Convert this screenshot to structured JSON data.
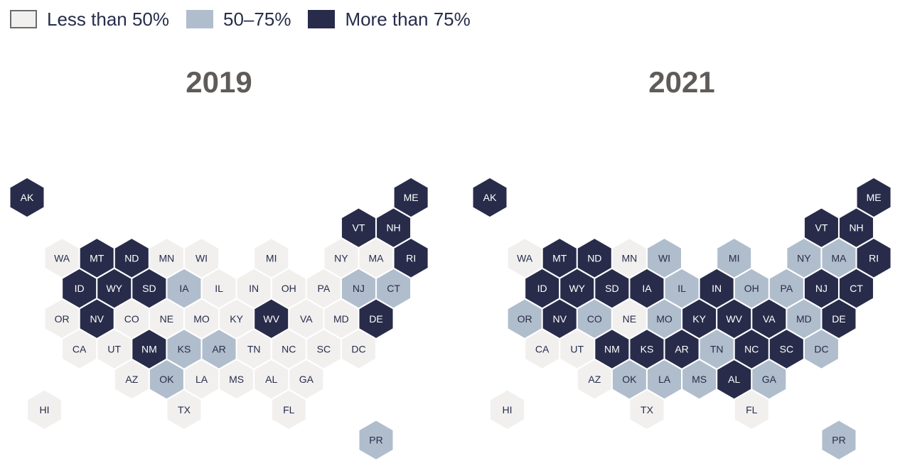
{
  "legend": [
    {
      "label": "Less than 50%",
      "color": "#f1f0ef",
      "border": "#6b6b6b"
    },
    {
      "label": "50–75%",
      "color": "#b0bdcc",
      "border": "#b0bdcc"
    },
    {
      "label": "More than 75%",
      "color": "#282c4a",
      "border": "#282c4a"
    }
  ],
  "colors": {
    "low": "#f1f0ef",
    "mid": "#b0bdcc",
    "high": "#282c4a",
    "text_on_light": "#272d4a",
    "text_on_dark": "#ffffff",
    "title": "#5f5b58"
  },
  "maps": [
    {
      "title": "2019",
      "states": [
        {
          "code": "AK",
          "row": 0,
          "col": 0,
          "cat": "high"
        },
        {
          "code": "ME",
          "row": 0,
          "col": 11,
          "cat": "high"
        },
        {
          "code": "VT",
          "row": 1,
          "col": 9.5,
          "cat": "high"
        },
        {
          "code": "NH",
          "row": 1,
          "col": 10.5,
          "cat": "high"
        },
        {
          "code": "WA",
          "row": 2,
          "col": 1,
          "cat": "low"
        },
        {
          "code": "MT",
          "row": 2,
          "col": 2,
          "cat": "high"
        },
        {
          "code": "ND",
          "row": 2,
          "col": 3,
          "cat": "high"
        },
        {
          "code": "MN",
          "row": 2,
          "col": 4,
          "cat": "low"
        },
        {
          "code": "WI",
          "row": 2,
          "col": 5,
          "cat": "low"
        },
        {
          "code": "MI",
          "row": 2,
          "col": 7,
          "cat": "low"
        },
        {
          "code": "NY",
          "row": 2,
          "col": 9,
          "cat": "low"
        },
        {
          "code": "MA",
          "row": 2,
          "col": 10,
          "cat": "low"
        },
        {
          "code": "RI",
          "row": 2,
          "col": 11,
          "cat": "high"
        },
        {
          "code": "ID",
          "row": 3,
          "col": 1.5,
          "cat": "high"
        },
        {
          "code": "WY",
          "row": 3,
          "col": 2.5,
          "cat": "high"
        },
        {
          "code": "SD",
          "row": 3,
          "col": 3.5,
          "cat": "high"
        },
        {
          "code": "IA",
          "row": 3,
          "col": 4.5,
          "cat": "mid"
        },
        {
          "code": "IL",
          "row": 3,
          "col": 5.5,
          "cat": "low"
        },
        {
          "code": "IN",
          "row": 3,
          "col": 6.5,
          "cat": "low"
        },
        {
          "code": "OH",
          "row": 3,
          "col": 7.5,
          "cat": "low"
        },
        {
          "code": "PA",
          "row": 3,
          "col": 8.5,
          "cat": "low"
        },
        {
          "code": "NJ",
          "row": 3,
          "col": 9.5,
          "cat": "mid"
        },
        {
          "code": "CT",
          "row": 3,
          "col": 10.5,
          "cat": "mid"
        },
        {
          "code": "OR",
          "row": 4,
          "col": 1,
          "cat": "low"
        },
        {
          "code": "NV",
          "row": 4,
          "col": 2,
          "cat": "high"
        },
        {
          "code": "CO",
          "row": 4,
          "col": 3,
          "cat": "low"
        },
        {
          "code": "NE",
          "row": 4,
          "col": 4,
          "cat": "low"
        },
        {
          "code": "MO",
          "row": 4,
          "col": 5,
          "cat": "low"
        },
        {
          "code": "KY",
          "row": 4,
          "col": 6,
          "cat": "low"
        },
        {
          "code": "WV",
          "row": 4,
          "col": 7,
          "cat": "high"
        },
        {
          "code": "VA",
          "row": 4,
          "col": 8,
          "cat": "low"
        },
        {
          "code": "MD",
          "row": 4,
          "col": 9,
          "cat": "low"
        },
        {
          "code": "DE",
          "row": 4,
          "col": 10,
          "cat": "high"
        },
        {
          "code": "CA",
          "row": 5,
          "col": 1.5,
          "cat": "low"
        },
        {
          "code": "UT",
          "row": 5,
          "col": 2.5,
          "cat": "low"
        },
        {
          "code": "NM",
          "row": 5,
          "col": 3.5,
          "cat": "high"
        },
        {
          "code": "KS",
          "row": 5,
          "col": 4.5,
          "cat": "mid"
        },
        {
          "code": "AR",
          "row": 5,
          "col": 5.5,
          "cat": "mid"
        },
        {
          "code": "TN",
          "row": 5,
          "col": 6.5,
          "cat": "low"
        },
        {
          "code": "NC",
          "row": 5,
          "col": 7.5,
          "cat": "low"
        },
        {
          "code": "SC",
          "row": 5,
          "col": 8.5,
          "cat": "low"
        },
        {
          "code": "DC",
          "row": 5,
          "col": 9.5,
          "cat": "low"
        },
        {
          "code": "AZ",
          "row": 6,
          "col": 3,
          "cat": "low"
        },
        {
          "code": "OK",
          "row": 6,
          "col": 4,
          "cat": "mid"
        },
        {
          "code": "LA",
          "row": 6,
          "col": 5,
          "cat": "low"
        },
        {
          "code": "MS",
          "row": 6,
          "col": 6,
          "cat": "low"
        },
        {
          "code": "AL",
          "row": 6,
          "col": 7,
          "cat": "low"
        },
        {
          "code": "GA",
          "row": 6,
          "col": 8,
          "cat": "low"
        },
        {
          "code": "HI",
          "row": 7,
          "col": 0.5,
          "cat": "low"
        },
        {
          "code": "TX",
          "row": 7,
          "col": 4.5,
          "cat": "low"
        },
        {
          "code": "FL",
          "row": 7,
          "col": 7.5,
          "cat": "low"
        },
        {
          "code": "PR",
          "row": 8,
          "col": 10,
          "cat": "mid"
        }
      ]
    },
    {
      "title": "2021",
      "states": [
        {
          "code": "AK",
          "row": 0,
          "col": 0,
          "cat": "high"
        },
        {
          "code": "ME",
          "row": 0,
          "col": 11,
          "cat": "high"
        },
        {
          "code": "VT",
          "row": 1,
          "col": 9.5,
          "cat": "high"
        },
        {
          "code": "NH",
          "row": 1,
          "col": 10.5,
          "cat": "high"
        },
        {
          "code": "WA",
          "row": 2,
          "col": 1,
          "cat": "low"
        },
        {
          "code": "MT",
          "row": 2,
          "col": 2,
          "cat": "high"
        },
        {
          "code": "ND",
          "row": 2,
          "col": 3,
          "cat": "high"
        },
        {
          "code": "MN",
          "row": 2,
          "col": 4,
          "cat": "low"
        },
        {
          "code": "WI",
          "row": 2,
          "col": 5,
          "cat": "mid"
        },
        {
          "code": "MI",
          "row": 2,
          "col": 7,
          "cat": "mid"
        },
        {
          "code": "NY",
          "row": 2,
          "col": 9,
          "cat": "mid"
        },
        {
          "code": "MA",
          "row": 2,
          "col": 10,
          "cat": "mid"
        },
        {
          "code": "RI",
          "row": 2,
          "col": 11,
          "cat": "high"
        },
        {
          "code": "ID",
          "row": 3,
          "col": 1.5,
          "cat": "high"
        },
        {
          "code": "WY",
          "row": 3,
          "col": 2.5,
          "cat": "high"
        },
        {
          "code": "SD",
          "row": 3,
          "col": 3.5,
          "cat": "high"
        },
        {
          "code": "IA",
          "row": 3,
          "col": 4.5,
          "cat": "high"
        },
        {
          "code": "IL",
          "row": 3,
          "col": 5.5,
          "cat": "mid"
        },
        {
          "code": "IN",
          "row": 3,
          "col": 6.5,
          "cat": "high"
        },
        {
          "code": "OH",
          "row": 3,
          "col": 7.5,
          "cat": "mid"
        },
        {
          "code": "PA",
          "row": 3,
          "col": 8.5,
          "cat": "mid"
        },
        {
          "code": "NJ",
          "row": 3,
          "col": 9.5,
          "cat": "high"
        },
        {
          "code": "CT",
          "row": 3,
          "col": 10.5,
          "cat": "high"
        },
        {
          "code": "OR",
          "row": 4,
          "col": 1,
          "cat": "mid"
        },
        {
          "code": "NV",
          "row": 4,
          "col": 2,
          "cat": "high"
        },
        {
          "code": "CO",
          "row": 4,
          "col": 3,
          "cat": "mid"
        },
        {
          "code": "NE",
          "row": 4,
          "col": 4,
          "cat": "low"
        },
        {
          "code": "MO",
          "row": 4,
          "col": 5,
          "cat": "mid"
        },
        {
          "code": "KY",
          "row": 4,
          "col": 6,
          "cat": "high"
        },
        {
          "code": "WV",
          "row": 4,
          "col": 7,
          "cat": "high"
        },
        {
          "code": "VA",
          "row": 4,
          "col": 8,
          "cat": "high"
        },
        {
          "code": "MD",
          "row": 4,
          "col": 9,
          "cat": "mid"
        },
        {
          "code": "DE",
          "row": 4,
          "col": 10,
          "cat": "high"
        },
        {
          "code": "CA",
          "row": 5,
          "col": 1.5,
          "cat": "low"
        },
        {
          "code": "UT",
          "row": 5,
          "col": 2.5,
          "cat": "low"
        },
        {
          "code": "NM",
          "row": 5,
          "col": 3.5,
          "cat": "high"
        },
        {
          "code": "KS",
          "row": 5,
          "col": 4.5,
          "cat": "high"
        },
        {
          "code": "AR",
          "row": 5,
          "col": 5.5,
          "cat": "high"
        },
        {
          "code": "TN",
          "row": 5,
          "col": 6.5,
          "cat": "mid"
        },
        {
          "code": "NC",
          "row": 5,
          "col": 7.5,
          "cat": "high"
        },
        {
          "code": "SC",
          "row": 5,
          "col": 8.5,
          "cat": "high"
        },
        {
          "code": "DC",
          "row": 5,
          "col": 9.5,
          "cat": "mid"
        },
        {
          "code": "AZ",
          "row": 6,
          "col": 3,
          "cat": "low"
        },
        {
          "code": "OK",
          "row": 6,
          "col": 4,
          "cat": "mid"
        },
        {
          "code": "LA",
          "row": 6,
          "col": 5,
          "cat": "mid"
        },
        {
          "code": "MS",
          "row": 6,
          "col": 6,
          "cat": "mid"
        },
        {
          "code": "AL",
          "row": 6,
          "col": 7,
          "cat": "high"
        },
        {
          "code": "GA",
          "row": 6,
          "col": 8,
          "cat": "mid"
        },
        {
          "code": "HI",
          "row": 7,
          "col": 0.5,
          "cat": "low"
        },
        {
          "code": "TX",
          "row": 7,
          "col": 4.5,
          "cat": "low"
        },
        {
          "code": "FL",
          "row": 7,
          "col": 7.5,
          "cat": "low"
        },
        {
          "code": "PR",
          "row": 8,
          "col": 10,
          "cat": "mid"
        }
      ]
    }
  ]
}
